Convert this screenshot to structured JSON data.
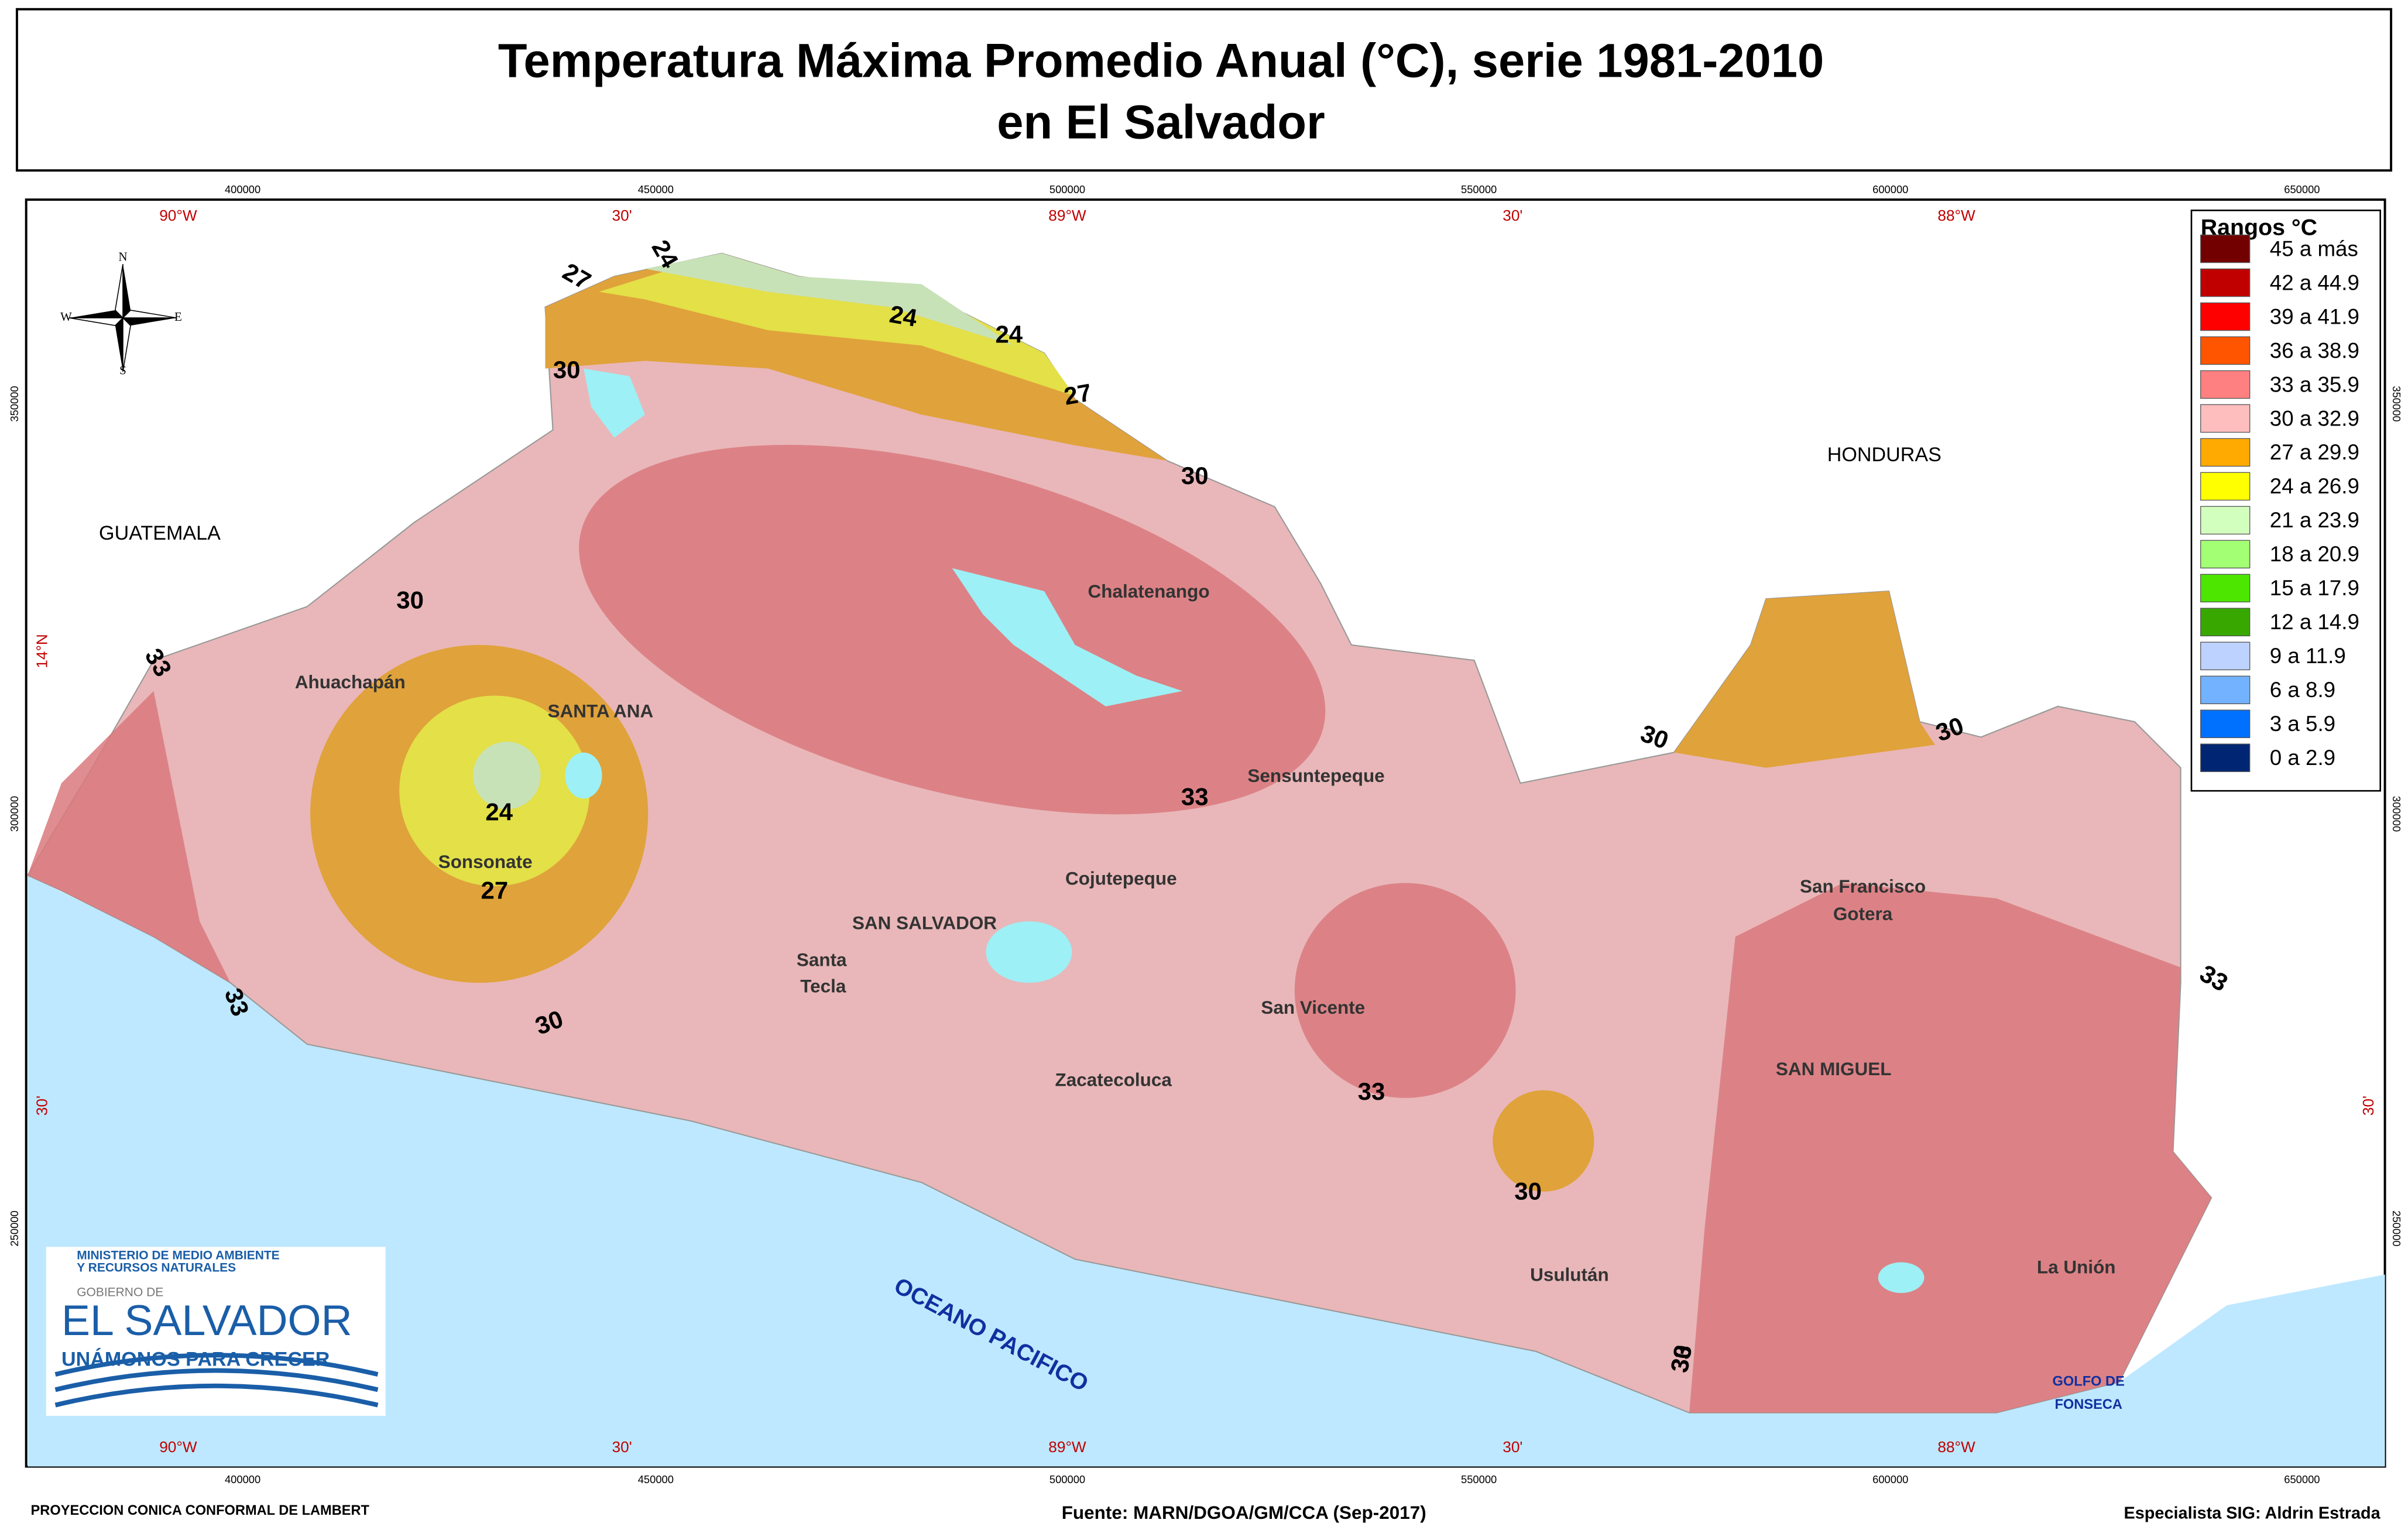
{
  "title": [
    "Temperatura Máxima Promedio Anual (°C), serie 1981-2010",
    "en El Salvador"
  ],
  "legend": {
    "title": "Rangos °C",
    "items": [
      {
        "label": "45 a más",
        "color": "#730000"
      },
      {
        "label": "42 a 44.9",
        "color": "#c00000"
      },
      {
        "label": "39 a 41.9",
        "color": "#ff0000"
      },
      {
        "label": "36 a 38.9",
        "color": "#ff5500"
      },
      {
        "label": "33 a 35.9",
        "color": "#ff8080"
      },
      {
        "label": "30 a 32.9",
        "color": "#ffbebe"
      },
      {
        "label": "27 a 29.9",
        "color": "#ffaa00"
      },
      {
        "label": "24 a 26.9",
        "color": "#ffff00"
      },
      {
        "label": "21 a 23.9",
        "color": "#d3ffbe"
      },
      {
        "label": "18 a 20.9",
        "color": "#a3ff73"
      },
      {
        "label": "15 a 17.9",
        "color": "#4ce600"
      },
      {
        "label": "12 a 14.9",
        "color": "#38a800"
      },
      {
        "label": "9 a 11.9",
        "color": "#bed2ff"
      },
      {
        "label": "6 a 8.9",
        "color": "#73b2ff"
      },
      {
        "label": "3 a 5.9",
        "color": "#0070ff"
      },
      {
        "label": "0 a 2.9",
        "color": "#002673"
      }
    ]
  },
  "grid": {
    "eastings": [
      "400000",
      "450000",
      "500000",
      "550000",
      "600000",
      "650000"
    ],
    "longitudes": [
      "90°W",
      "30'",
      "89°W",
      "30'",
      "88°W"
    ],
    "northings": [
      "350000",
      "300000",
      "250000"
    ],
    "latitudes": [
      "14°N",
      "30'"
    ]
  },
  "places": [
    "GUATEMALA",
    "HONDURAS",
    "Chalatenango",
    "Ahuachapán",
    "SANTA ANA",
    "Sensuntepeque",
    "Sonsonate",
    "Cojutepeque",
    "SAN SALVADOR",
    "Santa",
    "Tecla",
    "San Vicente",
    "Zacatecoluca",
    "San Francisco",
    "Gotera",
    "SAN MIGUEL",
    "Usulután",
    "La Unión",
    "GOLFO DE",
    "FONSECA",
    "OCEANO PACIFICO"
  ],
  "isotherms": [
    "24",
    "27",
    "24",
    "24",
    "30",
    "27",
    "30",
    "30",
    "33",
    "33",
    "30",
    "24",
    "27",
    "30",
    "33",
    "33",
    "30",
    "30",
    "33",
    "30",
    "33"
  ],
  "compass": [
    "N",
    "S",
    "E",
    "W"
  ],
  "logo": [
    "MINISTERIO DE MEDIO AMBIENTE",
    "Y RECURSOS NATURALES",
    "GOBIERNO DE",
    "EL SALVADOR",
    "UNÁMONOS PARA CRECER"
  ],
  "footer": {
    "left": "PROYECCION CONICA CONFORMAL DE LAMBERT",
    "center": "Fuente: MARN/DGOA/GM/CCA (Sep-2017)",
    "right": "Especialista SIG: Aldrin Estrada"
  }
}
